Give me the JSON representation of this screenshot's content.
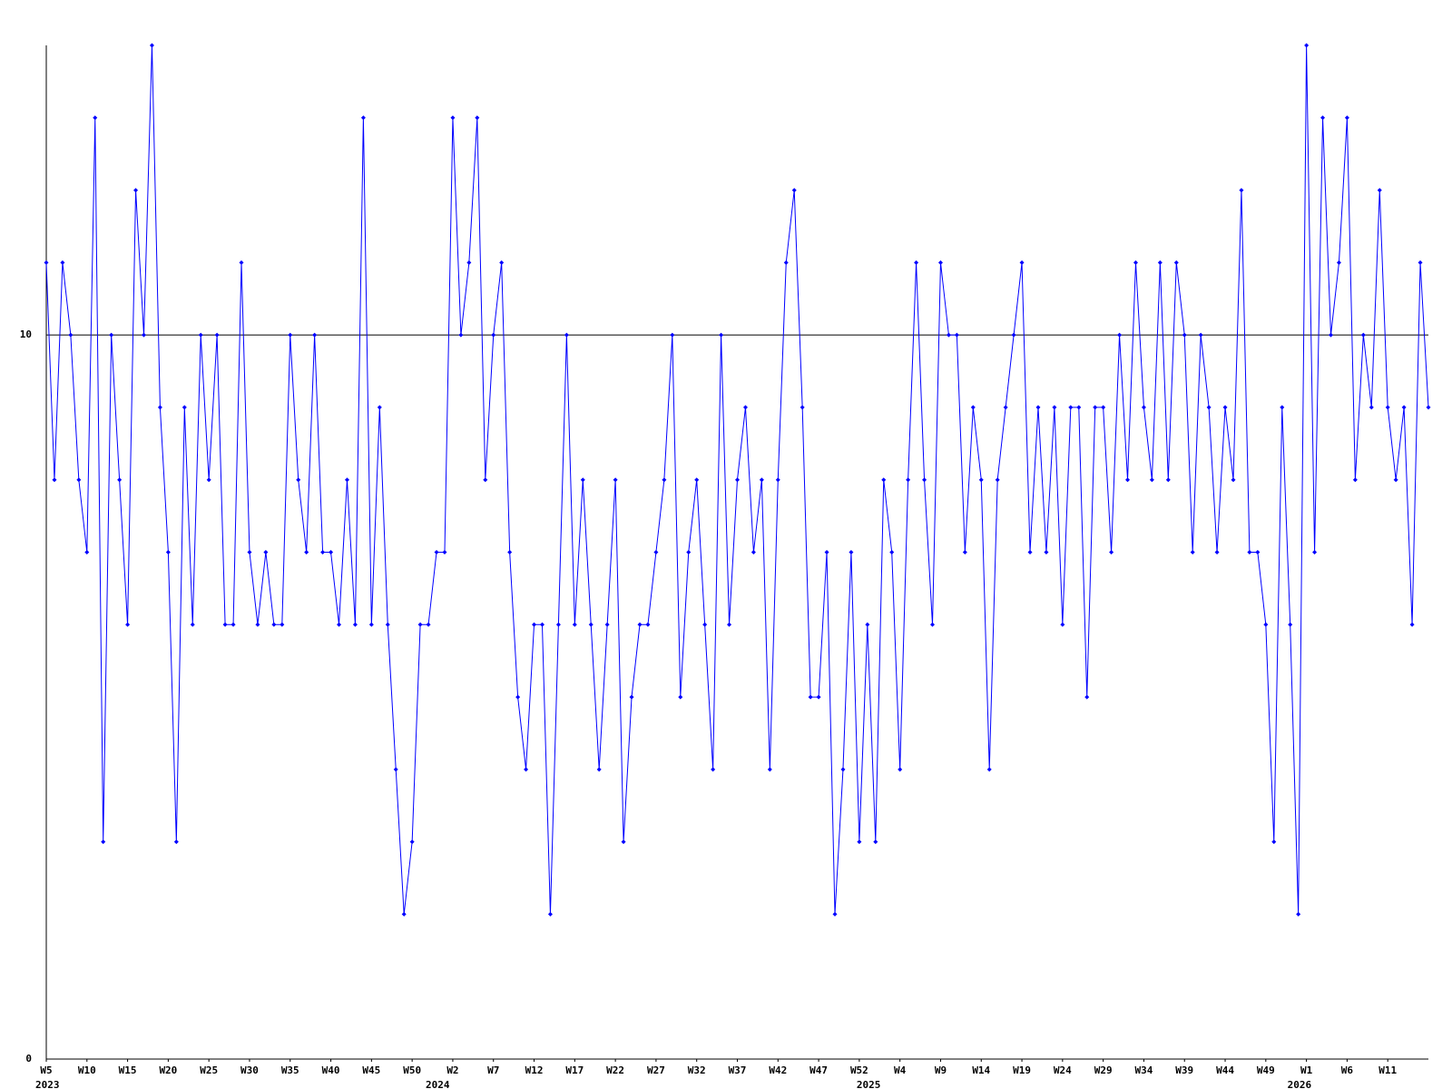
{
  "chart_data": {
    "type": "line",
    "series": [
      {
        "color": "#0000ff",
        "values": [
          11,
          8,
          11,
          10,
          8,
          7,
          13,
          3,
          10,
          8,
          6,
          12,
          10,
          14,
          9,
          7,
          3,
          9,
          6,
          10,
          8,
          10,
          6,
          6,
          11,
          7,
          6,
          7,
          6,
          6,
          10,
          8,
          7,
          10,
          7,
          7,
          6,
          8,
          6,
          13,
          6,
          9,
          6,
          4,
          2,
          3,
          6,
          6,
          7,
          7,
          13,
          10,
          11,
          13,
          8,
          10,
          11,
          7,
          5,
          4,
          6,
          6,
          2,
          6,
          10,
          6,
          8,
          6,
          4,
          6,
          8,
          3,
          5,
          6,
          6,
          7,
          8,
          10,
          5,
          7,
          8,
          6,
          4,
          10,
          6,
          8,
          9,
          7,
          8,
          4,
          8,
          11,
          12,
          9,
          5,
          5,
          7,
          2,
          4,
          7,
          3,
          6,
          3,
          8,
          7,
          4,
          8,
          11,
          8,
          6,
          11,
          10,
          10,
          7,
          9,
          8,
          4,
          8,
          9,
          10,
          11,
          7,
          9,
          7,
          9,
          6,
          9,
          9,
          5,
          9,
          9,
          7,
          10,
          8,
          11,
          9,
          8,
          11,
          8,
          11,
          10,
          7,
          10,
          9,
          7,
          9,
          8,
          12,
          7,
          7,
          6,
          3,
          9,
          6,
          2,
          14,
          7,
          13,
          10,
          11,
          13,
          8,
          10,
          9,
          12,
          9,
          8,
          9,
          6,
          11,
          9
        ]
      }
    ],
    "xlim": [
      0,
      170
    ],
    "xticks": [
      {
        "value": 0,
        "label": "W5"
      },
      {
        "value": 5,
        "label": "W10"
      },
      {
        "value": 10,
        "label": "W15"
      },
      {
        "value": 15,
        "label": "W20"
      },
      {
        "value": 20,
        "label": "W25"
      },
      {
        "value": 25,
        "label": "W30"
      },
      {
        "value": 30,
        "label": "W35"
      },
      {
        "value": 35,
        "label": "W40"
      },
      {
        "value": 40,
        "label": "W45"
      },
      {
        "value": 45,
        "label": "W50"
      },
      {
        "value": 50,
        "label": "W2"
      },
      {
        "value": 55,
        "label": "W7"
      },
      {
        "value": 60,
        "label": "W12"
      },
      {
        "value": 65,
        "label": "W17"
      },
      {
        "value": 70,
        "label": "W22"
      },
      {
        "value": 75,
        "label": "W27"
      },
      {
        "value": 80,
        "label": "W32"
      },
      {
        "value": 85,
        "label": "W37"
      },
      {
        "value": 90,
        "label": "W42"
      },
      {
        "value": 95,
        "label": "W47"
      },
      {
        "value": 100,
        "label": "W52"
      },
      {
        "value": 105,
        "label": "W4"
      },
      {
        "value": 110,
        "label": "W9"
      },
      {
        "value": 115,
        "label": "W14"
      },
      {
        "value": 120,
        "label": "W19"
      },
      {
        "value": 125,
        "label": "W24"
      },
      {
        "value": 130,
        "label": "W29"
      },
      {
        "value": 135,
        "label": "W34"
      },
      {
        "value": 140,
        "label": "W39"
      },
      {
        "value": 145,
        "label": "W44"
      },
      {
        "value": 150,
        "label": "W49"
      },
      {
        "value": 155,
        "label": "W1"
      },
      {
        "value": 160,
        "label": "W6"
      },
      {
        "value": 165,
        "label": "W11"
      }
    ],
    "year_ticks": [
      {
        "value": 0,
        "label": "2023"
      },
      {
        "value": 48,
        "label": "2024"
      },
      {
        "value": 101,
        "label": "2025"
      },
      {
        "value": 154,
        "label": "2026"
      }
    ],
    "ylim": [
      0,
      14
    ],
    "yticks": [
      0,
      10
    ],
    "grid": true
  }
}
